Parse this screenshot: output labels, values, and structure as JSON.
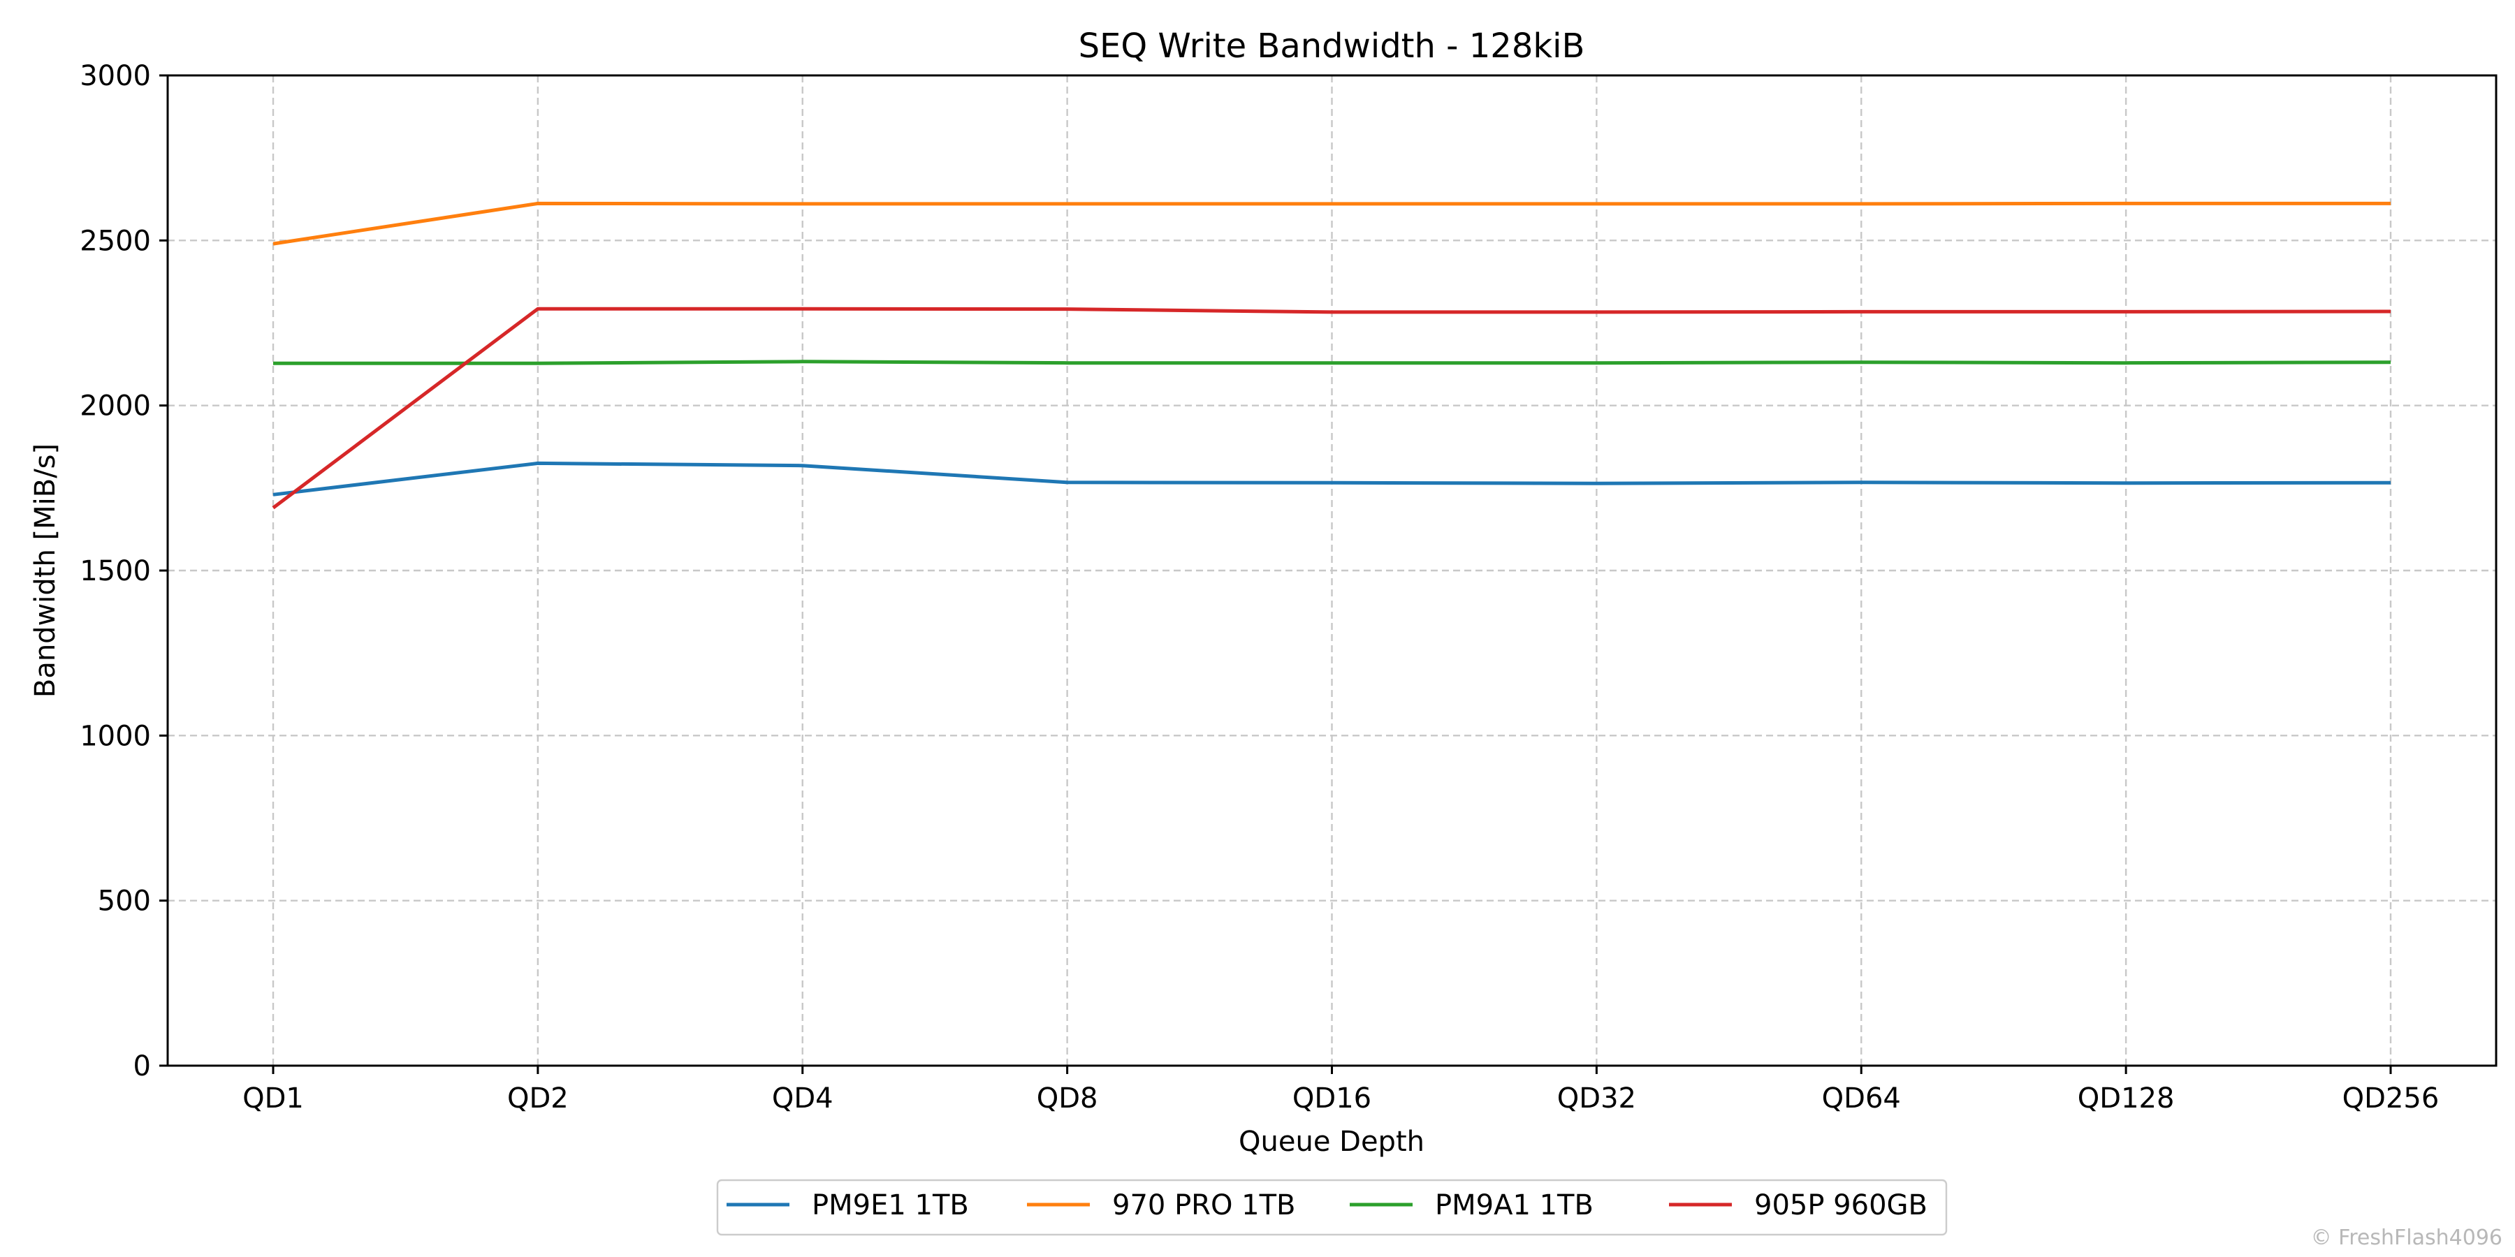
{
  "chart_data": {
    "type": "line",
    "title": "SEQ Write Bandwidth - 128kiB",
    "xlabel": "Queue Depth",
    "ylabel": "Bandwidth [MiB/s]",
    "categories": [
      "QD1",
      "QD2",
      "QD4",
      "QD8",
      "QD16",
      "QD32",
      "QD64",
      "QD128",
      "QD256"
    ],
    "ylim": [
      0,
      3000
    ],
    "yticks": [
      0,
      500,
      1000,
      1500,
      2000,
      2500,
      3000
    ],
    "grid": true,
    "legend_position": "bottom-center, below plot",
    "series": [
      {
        "name": "PM9E1 1TB",
        "color": "#1f77b4",
        "values": [
          1730,
          1825,
          1818,
          1767,
          1766,
          1764,
          1767,
          1765,
          1766
        ]
      },
      {
        "name": "970 PRO 1TB",
        "color": "#ff7f0e",
        "values": [
          2490,
          2612,
          2611,
          2611,
          2611,
          2611,
          2611,
          2612,
          2612
        ]
      },
      {
        "name": "PM9A1 1TB",
        "color": "#2ca02c",
        "values": [
          2128,
          2128,
          2133,
          2129,
          2129,
          2129,
          2131,
          2129,
          2131
        ]
      },
      {
        "name": "905P 960GB",
        "color": "#d62728",
        "values": [
          1690,
          2293,
          2293,
          2292,
          2283,
          2283,
          2284,
          2284,
          2285
        ]
      }
    ]
  },
  "watermark": "© FreshFlash4096"
}
